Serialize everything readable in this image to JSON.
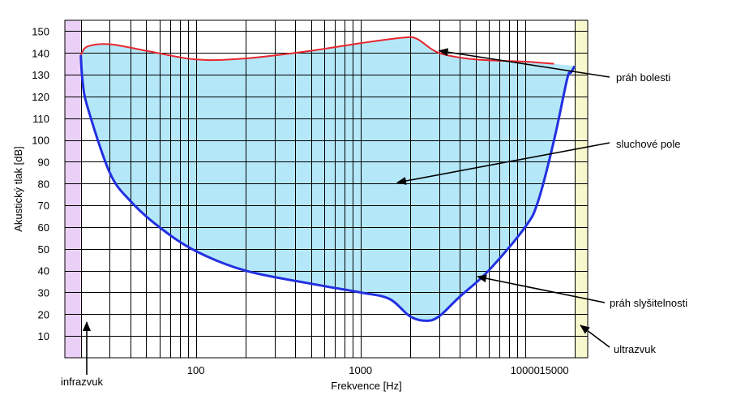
{
  "chart_data": {
    "type": "area",
    "xlabel": "Frekvence [Hz]",
    "ylabel": "Akustický tlak [dB]",
    "x_scale": "log",
    "xlim": [
      16,
      24000
    ],
    "ylim": [
      0,
      155
    ],
    "x_tick_labels": [
      "100",
      "1000",
      "10000",
      "15000"
    ],
    "x_ticks": [
      100,
      1000,
      10000,
      15000
    ],
    "y_ticks": [
      10,
      20,
      30,
      40,
      50,
      60,
      70,
      80,
      90,
      100,
      110,
      120,
      130,
      140,
      150
    ],
    "y_tick_labels": [
      "10",
      "20",
      "30",
      "40",
      "50",
      "60",
      "70",
      "80",
      "90",
      "100",
      "110",
      "120",
      "130",
      "140",
      "150"
    ],
    "grid": true,
    "infrasound_band": [
      16,
      20
    ],
    "ultrasound_band": [
      20000,
      24000
    ],
    "colors": {
      "infrasound": "#ead0f7",
      "ultrasound": "#f8f8cf",
      "area_fill": "#b4e8f9",
      "pain_threshold": "#e8262e",
      "hearing_threshold": "#2330e0",
      "arrow": "#000000"
    },
    "pain_threshold": {
      "x": [
        20,
        22,
        30,
        50,
        100,
        200,
        500,
        1000,
        1800,
        2200,
        3000,
        5000,
        10000,
        15000
      ],
      "y": [
        139,
        143,
        144,
        141,
        137,
        137.5,
        141,
        144.5,
        147,
        146.5,
        140,
        137,
        136,
        135
      ]
    },
    "hearing_threshold": {
      "x": [
        20,
        20.5,
        22,
        30,
        40,
        60,
        100,
        200,
        500,
        1000,
        1500,
        2000,
        2500,
        3000,
        4000,
        6000,
        10000,
        12000,
        15000,
        18000,
        19000,
        20000
      ],
      "y": [
        139,
        127,
        115,
        85,
        72,
        60,
        49,
        40,
        34,
        30,
        27,
        19,
        17,
        19,
        28,
        40,
        60,
        72,
        100,
        128,
        131,
        134
      ]
    },
    "annotations": {
      "pain": "práh bolesti",
      "field": "sluchové pole",
      "hearing": "práh slyšitelnosti",
      "infra": "infrazvuk",
      "ultra": "ultrazvuk"
    }
  }
}
